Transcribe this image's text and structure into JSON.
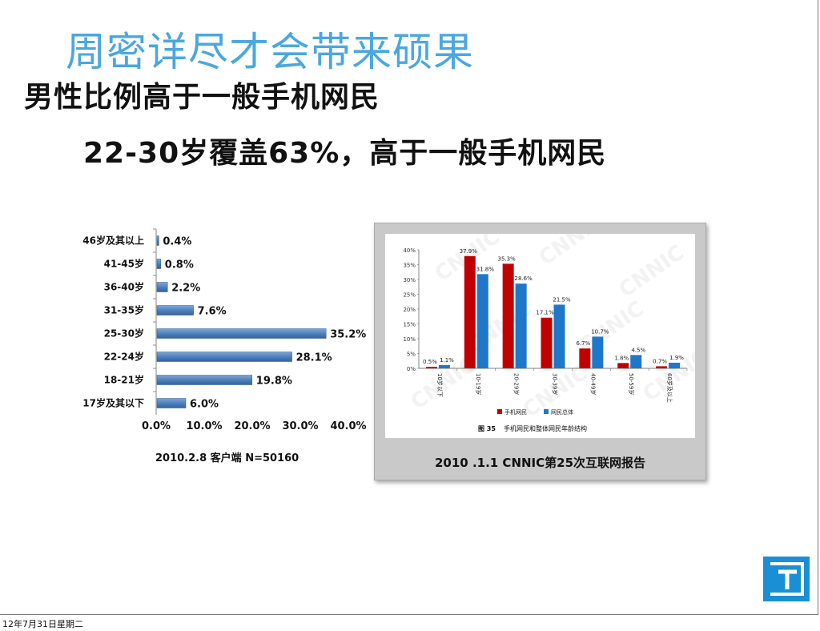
{
  "slide": {
    "faded_title": "周密详尽才会带来硕果",
    "title": "男性比例高于一般手机网民",
    "subtitle": "22-30岁覆盖63%，高于一般手机网民",
    "footer_date": "12年7月31日星期二",
    "logo_icon": "brand-logo-icon"
  },
  "colors": {
    "left_bar": "#4f81bd",
    "mobile_series": "#c00000",
    "internet_series": "#1f77c9",
    "logo_bg": "#1a8fd6"
  },
  "chart_data": [
    {
      "type": "bar",
      "orientation": "horizontal",
      "categories": [
        "46岁及其以上",
        "41-45岁",
        "36-40岁",
        "31-35岁",
        "25-30岁",
        "22-24岁",
        "18-21岁",
        "17岁及其以下"
      ],
      "values": [
        0.4,
        0.8,
        2.2,
        7.6,
        35.2,
        28.1,
        19.8,
        6.0
      ],
      "value_labels": [
        "0.4%",
        "0.8%",
        "2.2%",
        "7.6%",
        "35.2%",
        "28.1%",
        "19.8%",
        "6.0%"
      ],
      "xlim": [
        0,
        40
      ],
      "x_ticks": [
        "0.0%",
        "10.0%",
        "20.0%",
        "30.0%",
        "40.0%"
      ],
      "caption": "2010.2.8  客户端  N=50160",
      "grid": false
    },
    {
      "type": "bar",
      "categories": [
        "10岁以下",
        "10-19岁",
        "20-29岁",
        "30-39岁",
        "40-49岁",
        "50-59岁",
        "60岁及以上"
      ],
      "series": [
        {
          "name": "手机网民",
          "values": [
            0.5,
            37.9,
            35.3,
            17.1,
            6.7,
            1.8,
            0.7
          ],
          "labels": [
            "0.5%",
            "37.9%",
            "35.3%",
            "17.1%",
            "6.7%",
            "1.8%",
            "0.7%"
          ]
        },
        {
          "name": "网民总体",
          "values": [
            1.1,
            31.8,
            28.6,
            21.5,
            10.7,
            4.5,
            1.9
          ],
          "labels": [
            "1.1%",
            "31.8%",
            "28.6%",
            "21.5%",
            "10.7%",
            "4.5%",
            "1.9%"
          ]
        }
      ],
      "ylim": [
        0,
        40
      ],
      "y_ticks": [
        "0%",
        "5%",
        "10%",
        "15%",
        "20%",
        "25%",
        "30%",
        "35%",
        "40%"
      ],
      "figure_label": "图 35",
      "figure_title": "手机网民和整体网民年龄结构",
      "watermark": "CNNIC",
      "legend_position": "bottom",
      "source_caption": "2010 .1.1  CNNIC第25次互联网报告"
    }
  ]
}
